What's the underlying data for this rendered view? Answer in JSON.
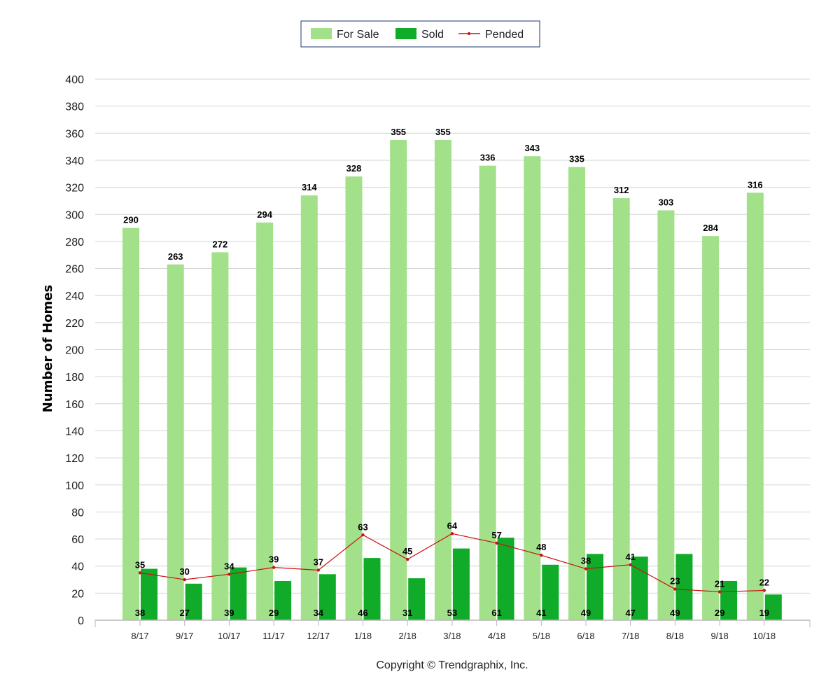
{
  "legend": {
    "items": [
      {
        "label": "For Sale",
        "color": "#a2e08a",
        "kind": "bar"
      },
      {
        "label": "Sold",
        "color": "#10ab28",
        "kind": "bar"
      },
      {
        "label": "Pended",
        "color": "#cc1111",
        "kind": "line"
      }
    ]
  },
  "footer": {
    "copyright": "Copyright © Trendgraphix, Inc."
  },
  "chart_data": {
    "type": "bar",
    "ylabel": "Number of Homes",
    "xlabel": "",
    "ylim": [
      0,
      400
    ],
    "ytick_step": 20,
    "grid": true,
    "legend_position": "top-center",
    "categories": [
      "8/17",
      "9/17",
      "10/17",
      "11/17",
      "12/17",
      "1/18",
      "2/18",
      "3/18",
      "4/18",
      "5/18",
      "6/18",
      "7/18",
      "8/18",
      "9/18",
      "10/18"
    ],
    "series": [
      {
        "name": "For Sale",
        "type": "bar",
        "color": "#a2e08a",
        "values": [
          290,
          263,
          272,
          294,
          314,
          328,
          355,
          355,
          336,
          343,
          335,
          312,
          303,
          284,
          316
        ]
      },
      {
        "name": "Sold",
        "type": "bar",
        "color": "#10ab28",
        "values": [
          38,
          27,
          39,
          29,
          34,
          46,
          31,
          53,
          61,
          41,
          49,
          47,
          49,
          29,
          19
        ]
      },
      {
        "name": "Pended",
        "type": "line",
        "color": "#cc1111",
        "values": [
          35,
          30,
          34,
          39,
          37,
          63,
          45,
          64,
          57,
          48,
          38,
          41,
          23,
          21,
          22
        ]
      }
    ]
  }
}
